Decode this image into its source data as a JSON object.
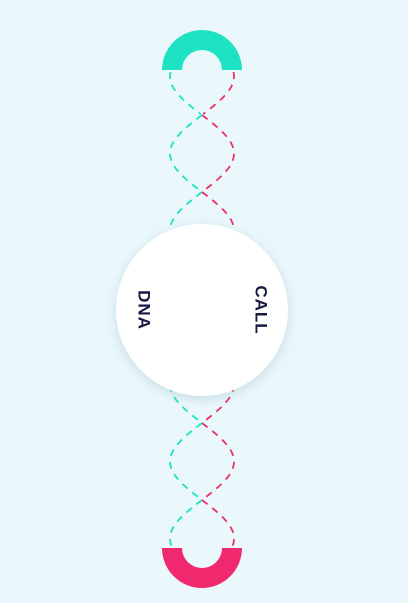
{
  "circle": {
    "left_label": "DNA",
    "right_label": "CALL"
  }
}
